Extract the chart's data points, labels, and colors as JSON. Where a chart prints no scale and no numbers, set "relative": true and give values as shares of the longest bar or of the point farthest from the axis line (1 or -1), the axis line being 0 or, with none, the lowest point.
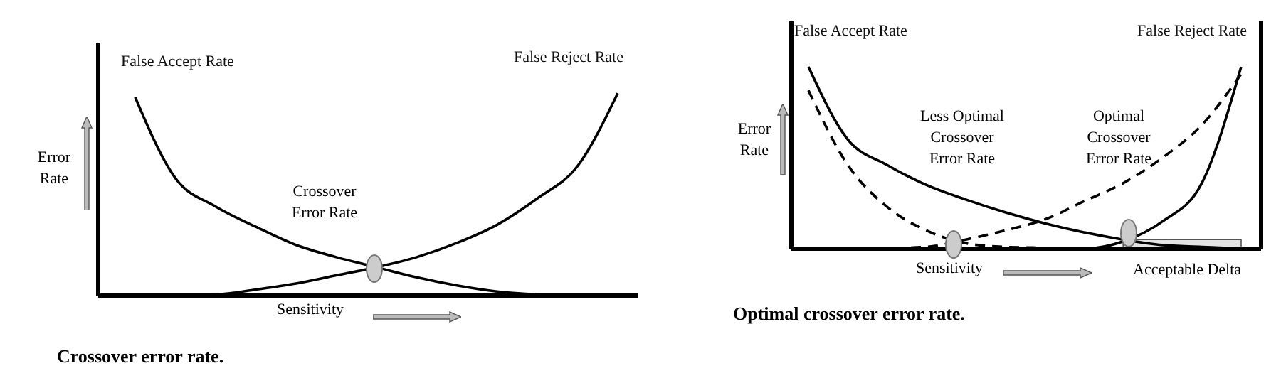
{
  "chart_data": [
    {
      "type": "line",
      "title": "Crossover error rate.",
      "xlabel": "Sensitivity",
      "ylabel": "Error Rate",
      "relative": true,
      "categories": [
        null,
        null,
        null,
        null,
        null,
        null,
        null,
        null,
        null,
        null,
        null,
        null,
        null
      ],
      "series": [
        {
          "name": "False Accept Rate",
          "color": "#000000",
          "line_style": "solid",
          "values": [
            0.98,
            0.58,
            0.44,
            0.34,
            0.25,
            0.19,
            0.14,
            0.09,
            0.05,
            0.02,
            0.005,
            0,
            0
          ]
        },
        {
          "name": "False Reject Rate",
          "color": "#000000",
          "line_style": "solid",
          "values": [
            0,
            0,
            0.005,
            0.03,
            0.06,
            0.1,
            0.14,
            0.19,
            0.26,
            0.35,
            0.48,
            0.64,
            1
          ]
        }
      ],
      "annotations": [
        "Crossover Error Rate"
      ]
    },
    {
      "type": "line",
      "title": "Optimal crossover error rate.",
      "xlabel": "Sensitivity",
      "ylabel": "Error Rate",
      "relative": true,
      "categories": [
        null,
        null,
        null,
        null,
        null,
        null,
        null,
        null,
        null,
        null,
        null,
        null
      ],
      "series": [
        {
          "name": "False Accept Rate",
          "color": "#000000",
          "line_style": "solid",
          "values": [
            1,
            0.6,
            0.46,
            0.35,
            0.27,
            0.2,
            0.14,
            0.09,
            0.05,
            0.02,
            0.01,
            0
          ]
        },
        {
          "name": "False Reject Rate",
          "color": "#000000",
          "line_style": "solid",
          "values": [
            0,
            0,
            0,
            0,
            0,
            0,
            0,
            0,
            0.04,
            0.15,
            0.36,
            1
          ]
        },
        {
          "color": "#000000",
          "line_style": "dashed",
          "values": [
            0.87,
            0.46,
            0.23,
            0.1,
            0.03,
            0.01,
            0.005,
            0,
            0,
            0,
            0,
            0
          ]
        },
        {
          "color": "#000000",
          "line_style": "dashed",
          "values": [
            0,
            0,
            0.003,
            0.01,
            0.05,
            0.1,
            0.16,
            0.26,
            0.36,
            0.5,
            0.68,
            0.96
          ]
        }
      ],
      "bands": [
        {
          "axis": "y",
          "from": 0,
          "to": 0.05,
          "label": "Acceptable Delta"
        }
      ],
      "annotations": [
        "Less Optimal Crossover Error Rate",
        "Optimal Crossover Error Rate"
      ]
    }
  ]
}
